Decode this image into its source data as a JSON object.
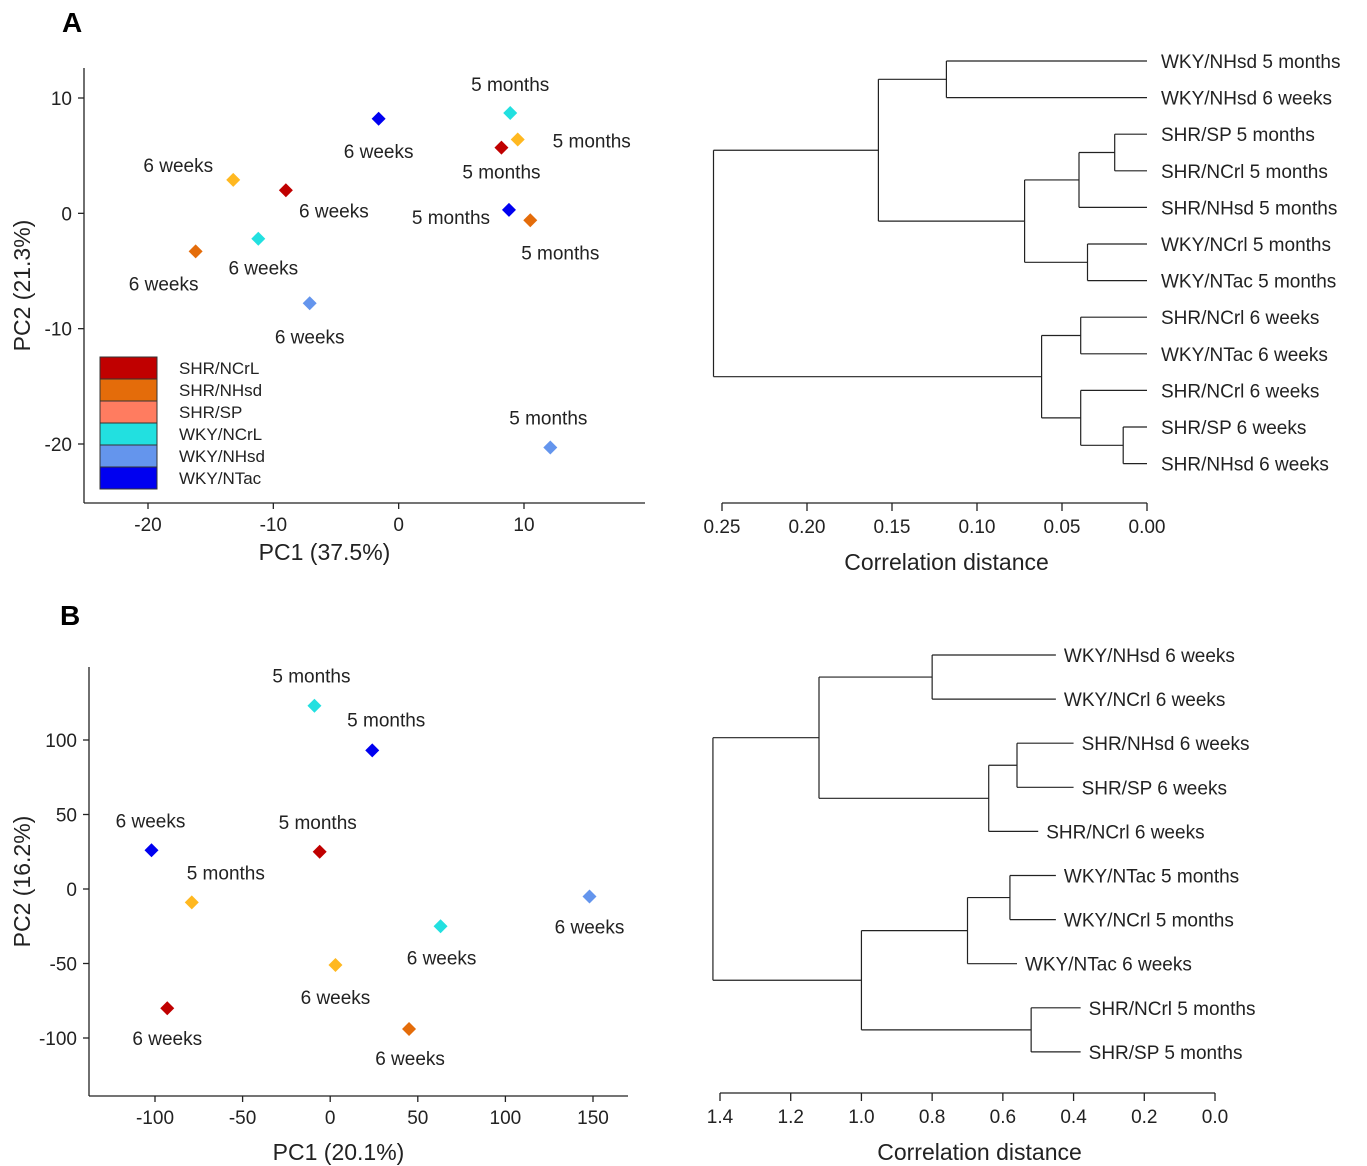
{
  "colors": {
    "SHR/NCrL": "#c00000",
    "SHR/NHsd": "#e46c0a",
    "SHR/SP": "#ff7c60",
    "WKY/NCrL": "#22e0e0",
    "WKY/NHsd": "#6495ed",
    "WKY/NTac": "#0000f0",
    "pt_yellow": "#ffb820",
    "pt_cyan": "#22e0e0",
    "pt_lightblue": "#6495ed",
    "pt_blue": "#0000f0",
    "pt_red": "#c00000",
    "pt_orange": "#e46c0a"
  },
  "chart_data": [
    {
      "panel": "A",
      "type": "scatter",
      "xlabel": "PC1 (37.5%)",
      "ylabel": "PC2 (21.3%)",
      "xlim": [
        -24.5,
        19.5
      ],
      "ylim": [
        -25,
        12.5
      ],
      "xticks": [
        -20,
        -10,
        0,
        10
      ],
      "yticks": [
        10,
        0,
        -10,
        -20
      ],
      "tick_labels_x": [
        "-20",
        "-10",
        "0",
        "10"
      ],
      "tick_labels_y": [
        "10",
        "0",
        "-10",
        "-20"
      ],
      "legend": {
        "position": "bottom-left",
        "entries": [
          "SHR/NCrL",
          "SHR/NHsd",
          "SHR/SP",
          "WKY/NCrL",
          "WKY/NHsd",
          "WKY/NTac"
        ]
      },
      "points": [
        {
          "x": 8.9,
          "y": 8.7,
          "color": "pt_cyan",
          "label": "5 months"
        },
        {
          "x": -1.6,
          "y": 8.2,
          "color": "pt_blue",
          "label": "6 weeks"
        },
        {
          "x": 9.5,
          "y": 6.4,
          "color": "pt_yellow",
          "label": "5 months"
        },
        {
          "x": 8.2,
          "y": 5.7,
          "color": "pt_red",
          "label": "5 months"
        },
        {
          "x": -13.2,
          "y": 2.9,
          "color": "pt_yellow",
          "label": "6 weeks"
        },
        {
          "x": -9.0,
          "y": 2.0,
          "color": "pt_red",
          "label": "6 weeks"
        },
        {
          "x": 8.8,
          "y": 0.3,
          "color": "pt_blue",
          "label": "5 months"
        },
        {
          "x": 10.5,
          "y": -0.6,
          "color": "pt_orange",
          "label": "5 months"
        },
        {
          "x": -11.2,
          "y": -2.2,
          "color": "pt_cyan",
          "label": "6 weeks"
        },
        {
          "x": -16.2,
          "y": -3.3,
          "color": "pt_orange",
          "label": "6 weeks"
        },
        {
          "x": -7.1,
          "y": -7.8,
          "color": "pt_lightblue",
          "label": "6 weeks"
        },
        {
          "x": 12.1,
          "y": -20.3,
          "color": "pt_lightblue",
          "label": "5 months"
        }
      ]
    },
    {
      "panel": "A",
      "type": "dendrogram",
      "xlabel": "Correlation distance",
      "xlim": [
        0.25,
        0.0
      ],
      "xticks": [
        0.25,
        0.2,
        0.15,
        0.1,
        0.05,
        0.0
      ],
      "tick_labels": [
        "0.25",
        "0.20",
        "0.15",
        "0.10",
        "0.05",
        "0.00"
      ],
      "leaves": [
        "WKY/NHsd 5 months",
        "WKY/NHsd 6 weeks",
        "SHR/SP 5 months",
        "SHR/NCrl 5 months",
        "SHR/NHsd 5 months",
        "WKY/NCrl 5 months",
        "WKY/NTac 5 months",
        "SHR/NCrl 6 weeks",
        "WKY/NTac 6 weeks",
        "SHR/NCrl 6 weeks",
        "SHR/SP 6 weeks",
        "SHR/NHsd 6 weeks"
      ],
      "leaf_heights": [
        0.0,
        0.0,
        0.0,
        0.0,
        0.0,
        0.0,
        0.0,
        0.0,
        0.0,
        0.0,
        0.0,
        0.0
      ],
      "merges": [
        [
          0,
          1,
          0.118
        ],
        [
          2,
          3,
          0.019
        ],
        [
          13,
          4,
          0.04
        ],
        [
          5,
          6,
          0.035
        ],
        [
          14,
          15,
          0.072
        ],
        [
          12,
          16,
          0.158
        ],
        [
          7,
          8,
          0.039
        ],
        [
          10,
          11,
          0.014
        ],
        [
          19,
          9,
          0.039
        ],
        [
          18,
          20,
          0.062
        ],
        [
          17,
          21,
          0.255
        ]
      ]
    },
    {
      "panel": "B",
      "type": "scatter",
      "xlabel": "PC1 (20.1%)",
      "ylabel": "PC2 (16.2%)",
      "xlim": [
        -140,
        172
      ],
      "ylim": [
        -128,
        148
      ],
      "xticks": [
        -100,
        -50,
        0,
        50,
        100,
        150
      ],
      "yticks": [
        100,
        50,
        0,
        -50,
        -100
      ],
      "tick_labels_x": [
        "-100",
        "-50",
        "0",
        "50",
        "100",
        "150"
      ],
      "tick_labels_y": [
        "100",
        "50",
        "0",
        "-50",
        "-100"
      ],
      "points": [
        {
          "x": -9,
          "y": 123,
          "color": "pt_cyan",
          "label": "5 months"
        },
        {
          "x": 24,
          "y": 93,
          "color": "pt_blue",
          "label": "5 months"
        },
        {
          "x": -102,
          "y": 26,
          "color": "pt_blue",
          "label": "6 weeks"
        },
        {
          "x": -6,
          "y": 25,
          "color": "pt_red",
          "label": "5 months"
        },
        {
          "x": -79,
          "y": -9,
          "color": "pt_yellow",
          "label": "5 months"
        },
        {
          "x": 148,
          "y": -5,
          "color": "pt_lightblue",
          "label": "6 weeks"
        },
        {
          "x": 63,
          "y": -25,
          "color": "pt_cyan",
          "label": "6 weeks"
        },
        {
          "x": 3,
          "y": -51,
          "color": "pt_yellow",
          "label": "6 weeks"
        },
        {
          "x": -93,
          "y": -80,
          "color": "pt_red",
          "label": "6 weeks"
        },
        {
          "x": 45,
          "y": -94,
          "color": "pt_orange",
          "label": "6 weeks"
        }
      ]
    },
    {
      "panel": "B",
      "type": "dendrogram",
      "xlabel": "Correlation distance",
      "xlim": [
        1.4,
        0.0
      ],
      "xticks": [
        1.4,
        1.2,
        1.0,
        0.8,
        0.6,
        0.4,
        0.2,
        0.0
      ],
      "tick_labels": [
        "1.4",
        "1.2",
        "1.0",
        "0.8",
        "0.6",
        "0.4",
        "0.2",
        "0.0"
      ],
      "leaves": [
        "WKY/NHsd 6 weeks",
        "WKY/NCrl 6 weeks",
        "SHR/NHsd 6 weeks",
        "SHR/SP 6 weeks",
        "SHR/NCrl 6 weeks",
        "WKY/NTac 5 months",
        "WKY/NCrl 5 months",
        "WKY/NTac 6 weeks",
        "SHR/NCrl 5 months",
        "SHR/SP 5 months"
      ],
      "leaf_heights": [
        0.45,
        0.45,
        0.4,
        0.4,
        0.5,
        0.45,
        0.45,
        0.56,
        0.38,
        0.38
      ],
      "merges": [
        [
          0,
          1,
          0.8
        ],
        [
          2,
          3,
          0.56
        ],
        [
          11,
          4,
          0.64
        ],
        [
          10,
          12,
          1.12
        ],
        [
          5,
          6,
          0.58
        ],
        [
          14,
          7,
          0.7
        ],
        [
          8,
          9,
          0.52
        ],
        [
          15,
          16,
          1.0
        ],
        [
          13,
          17,
          1.42
        ]
      ]
    }
  ]
}
